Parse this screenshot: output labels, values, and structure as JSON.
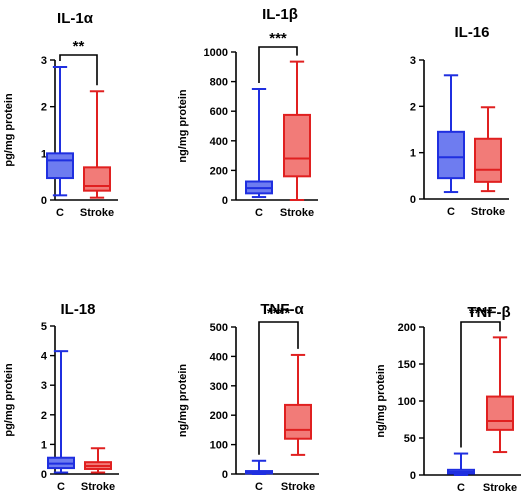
{
  "colors": {
    "control": "#1f2fe0",
    "control_fill": "#6e7cf0",
    "stroke": "#e02020",
    "stroke_fill": "#f27b78",
    "axis": "#000000"
  },
  "chart_data": [
    {
      "type": "box",
      "title": "IL-1α",
      "ylabel": "pg/mg protein",
      "ylim": [
        0,
        3
      ],
      "yticks": [
        "0",
        "1",
        "2",
        "3"
      ],
      "categories": [
        "C",
        "Stroke"
      ],
      "boxes": [
        {
          "name": "C",
          "min": 0.1,
          "q1": 0.47,
          "median": 0.85,
          "q3": 1.0,
          "max": 2.85
        },
        {
          "name": "Stroke",
          "min": 0.05,
          "q1": 0.2,
          "median": 0.3,
          "q3": 0.7,
          "max": 2.33
        }
      ],
      "significance": "**"
    },
    {
      "type": "box",
      "title": "IL-1β",
      "ylabel": "ng/mg protein",
      "ylim": [
        0,
        1000
      ],
      "yticks": [
        "0",
        "200",
        "400",
        "600",
        "800",
        "1000"
      ],
      "categories": [
        "C",
        "Stroke"
      ],
      "boxes": [
        {
          "name": "C",
          "min": 20,
          "q1": 45,
          "median": 80,
          "q3": 125,
          "max": 750
        },
        {
          "name": "Stroke",
          "min": 0,
          "q1": 160,
          "median": 280,
          "q3": 575,
          "max": 935
        }
      ],
      "significance": "***"
    },
    {
      "type": "box",
      "title": "IL-16",
      "ylabel": "",
      "ylim": [
        0,
        3
      ],
      "yticks": [
        "0",
        "1",
        "2",
        "3"
      ],
      "categories": [
        "C",
        "Stroke"
      ],
      "boxes": [
        {
          "name": "C",
          "min": 0.15,
          "q1": 0.45,
          "median": 0.9,
          "q3": 1.45,
          "max": 2.67
        },
        {
          "name": "Stroke",
          "min": 0.17,
          "q1": 0.37,
          "median": 0.63,
          "q3": 1.3,
          "max": 1.98
        }
      ],
      "significance": ""
    },
    {
      "type": "box",
      "title": "IL-18",
      "ylabel": "pg/mg protein",
      "ylim": [
        0,
        5
      ],
      "yticks": [
        "0",
        "1",
        "2",
        "3",
        "4",
        "5"
      ],
      "categories": [
        "C",
        "Stroke"
      ],
      "boxes": [
        {
          "name": "C",
          "min": 0.05,
          "q1": 0.2,
          "median": 0.35,
          "q3": 0.55,
          "max": 4.15
        },
        {
          "name": "Stroke",
          "min": 0.05,
          "q1": 0.17,
          "median": 0.27,
          "q3": 0.4,
          "max": 0.87
        }
      ],
      "significance": ""
    },
    {
      "type": "box",
      "title": "TNF-α",
      "ylabel": "ng/mg protein",
      "ylim": [
        0,
        500
      ],
      "yticks": [
        "0",
        "100",
        "200",
        "300",
        "400",
        "500"
      ],
      "categories": [
        "C",
        "Stroke"
      ],
      "boxes": [
        {
          "name": "C",
          "min": 0,
          "q1": 2,
          "median": 5,
          "q3": 10,
          "max": 45
        },
        {
          "name": "Stroke",
          "min": 65,
          "q1": 120,
          "median": 150,
          "q3": 235,
          "max": 405
        }
      ],
      "significance": "****"
    },
    {
      "type": "box",
      "title": "TNF-β",
      "ylabel": "ng/mg protein",
      "ylim": [
        0,
        200
      ],
      "yticks": [
        "0",
        "50",
        "100",
        "150",
        "200"
      ],
      "categories": [
        "C",
        "Stroke"
      ],
      "boxes": [
        {
          "name": "C",
          "min": 0,
          "q1": 2,
          "median": 4,
          "q3": 7,
          "max": 29
        },
        {
          "name": "Stroke",
          "min": 31,
          "q1": 61,
          "median": 73,
          "q3": 106,
          "max": 186
        }
      ],
      "significance": "****"
    }
  ]
}
